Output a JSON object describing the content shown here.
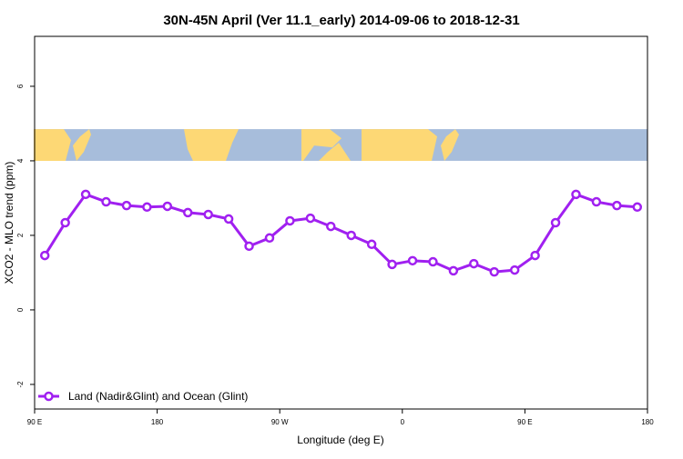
{
  "chart_data": {
    "type": "line",
    "title": "30N-45N April (Ver 11.1_early)   2014-09-06 to 2018-12-31",
    "xlabel": "Longitude (deg E)",
    "ylabel": "XCO2 - MLO trend (ppm)",
    "xlim": [
      90,
      540
    ],
    "ylim": [
      -2.66,
      7.34
    ],
    "xticks": [
      {
        "v": 90,
        "label": "90 E"
      },
      {
        "v": 180,
        "label": "180"
      },
      {
        "v": 270,
        "label": "90 W"
      },
      {
        "v": 360,
        "label": "0"
      },
      {
        "v": 450,
        "label": "90 E"
      },
      {
        "v": 540,
        "label": "180"
      }
    ],
    "yticks": [
      {
        "v": -2,
        "label": "-2"
      },
      {
        "v": 0,
        "label": "0"
      },
      {
        "v": 2,
        "label": "2"
      },
      {
        "v": 4,
        "label": "4"
      },
      {
        "v": 6,
        "label": "6"
      }
    ],
    "map_band": [
      4.0,
      4.85
    ],
    "legend": {
      "position": "bottom-left",
      "label": "Land (Nadir&Glint) and Ocean (Glint)"
    },
    "series": [
      {
        "name": "Land (Nadir&Glint) and Ocean (Glint)",
        "color": "#A020F0",
        "x": [
          97.5,
          112.5,
          127.5,
          142.5,
          157.5,
          172.5,
          187.5,
          202.5,
          217.5,
          232.5,
          247.5,
          262.5,
          277.5,
          292.5,
          307.5,
          322.5,
          337.5,
          352.5,
          367.5,
          382.5,
          397.5,
          412.5,
          427.5,
          442.5,
          457.5,
          472.5,
          487.5,
          502.5,
          517.5,
          532.5
        ],
        "y": [
          1.46,
          2.34,
          3.1,
          2.9,
          2.8,
          2.76,
          2.78,
          2.61,
          2.56,
          2.44,
          1.71,
          1.93,
          2.39,
          2.46,
          2.24,
          2.0,
          1.76,
          1.22,
          1.32,
          1.29,
          1.05,
          1.24,
          1.02,
          1.07,
          1.46,
          2.34,
          3.1,
          2.9,
          2.8,
          2.76
        ]
      }
    ]
  },
  "colors": {
    "land": "#FDD875",
    "ocean": "#A7BDDB"
  }
}
